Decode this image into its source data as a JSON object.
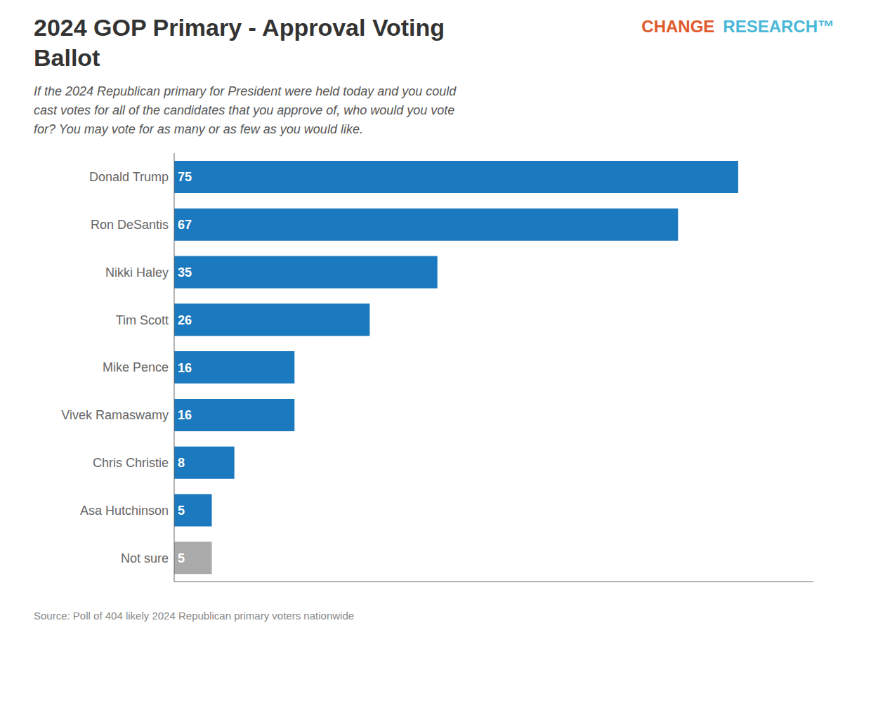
{
  "chart_data": {
    "type": "bar",
    "orientation": "horizontal",
    "title": "2024 GOP Primary - Approval Voting\nBallot",
    "subtitle": "If the 2024 Republican primary for President were held today and you could\ncast votes for all of the candidates that you approve of, who would you vote\nfor? You may vote for as many or as few as you would like.",
    "annotations": [
      {
        "text": "CHANGE",
        "color": "#e05a2b"
      },
      {
        "text": "RESEARCH™",
        "color": "#4ab8d8"
      },
      {
        "text": "Source: Poll of 404 likely 2024 Republican primary voters nationwide"
      }
    ],
    "categories": [
      "Donald Trump",
      "Ron DeSantis",
      "Nikki Haley",
      "Tim Scott",
      "Mike Pence",
      "Vivek Ramaswamy",
      "Chris Christie",
      "Asa Hutchinson",
      "Not sure"
    ],
    "values": [
      75,
      67,
      35,
      26,
      16,
      16,
      8,
      5,
      5
    ],
    "colors": [
      "#1b7abf",
      "#1b7abf",
      "#1b7abf",
      "#1b7abf",
      "#1b7abf",
      "#1b7abf",
      "#1b7abf",
      "#1b7abf",
      "#aaaaaa"
    ],
    "xlim": [
      0,
      85
    ],
    "data_labels": true,
    "tick_labels": "y"
  }
}
